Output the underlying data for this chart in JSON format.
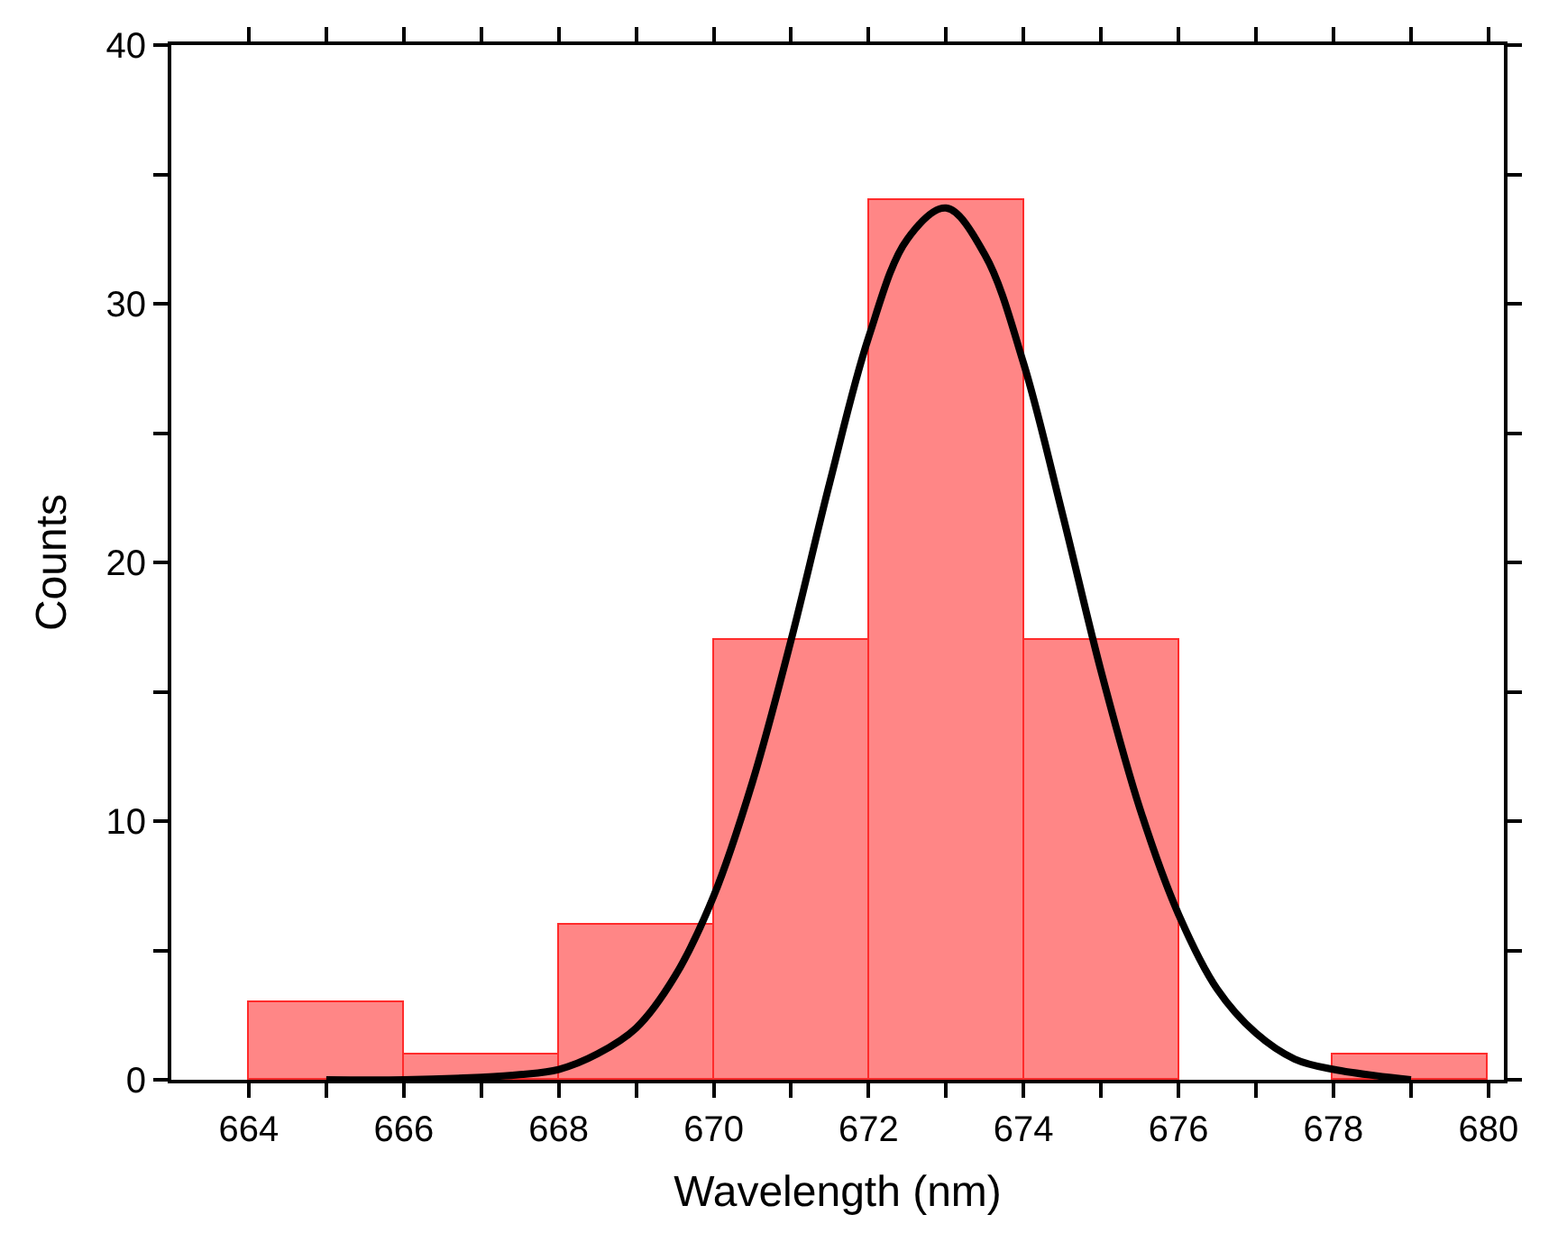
{
  "chart_data": {
    "type": "histogram",
    "xlabel": "Wavelength (nm)",
    "ylabel": "Counts",
    "bins": [
      664,
      666,
      668,
      670,
      672,
      674,
      676,
      678,
      680
    ],
    "values": [
      3,
      1,
      6,
      17,
      34,
      17,
      0,
      1
    ],
    "color": "#ff8080",
    "series": [
      {
        "type": "line",
        "color": "#000000",
        "x": [
          665,
          666,
          667,
          667.5,
          668,
          668.5,
          669,
          669.5,
          670,
          670.5,
          671,
          671.5,
          672,
          672.5,
          673,
          673.5,
          674,
          674.5,
          675,
          675.5,
          676,
          676.5,
          677,
          677.5,
          678,
          679
        ],
        "values": [
          0,
          0,
          0.1,
          0.2,
          0.4,
          1,
          2,
          4,
          7.1,
          11.5,
          17,
          23.1,
          28.7,
          32.5,
          33.7,
          31.9,
          27.7,
          21.9,
          15.8,
          10.5,
          6.4,
          3.5,
          1.8,
          0.8,
          0.4,
          0
        ]
      }
    ],
    "xlim": [
      663,
      680.2
    ],
    "ylim": [
      0,
      40
    ],
    "xticks": [
      664,
      {
        "value": 665,
        "label": null
      },
      666,
      {
        "value": 667,
        "label": null
      },
      668,
      {
        "value": 669,
        "label": null
      },
      670,
      {
        "value": 671,
        "label": null
      },
      672,
      {
        "value": 673,
        "label": null
      },
      674,
      {
        "value": 675,
        "label": null
      },
      676,
      {
        "value": 677,
        "label": null
      },
      678,
      {
        "value": 679,
        "label": null
      },
      680
    ],
    "yticks": [
      0,
      {
        "value": 5,
        "label": null
      },
      10,
      {
        "value": 15,
        "label": null
      },
      20,
      {
        "value": 25,
        "label": null
      },
      30,
      {
        "value": 35,
        "label": null
      },
      40
    ],
    "tick_labels": true
  }
}
